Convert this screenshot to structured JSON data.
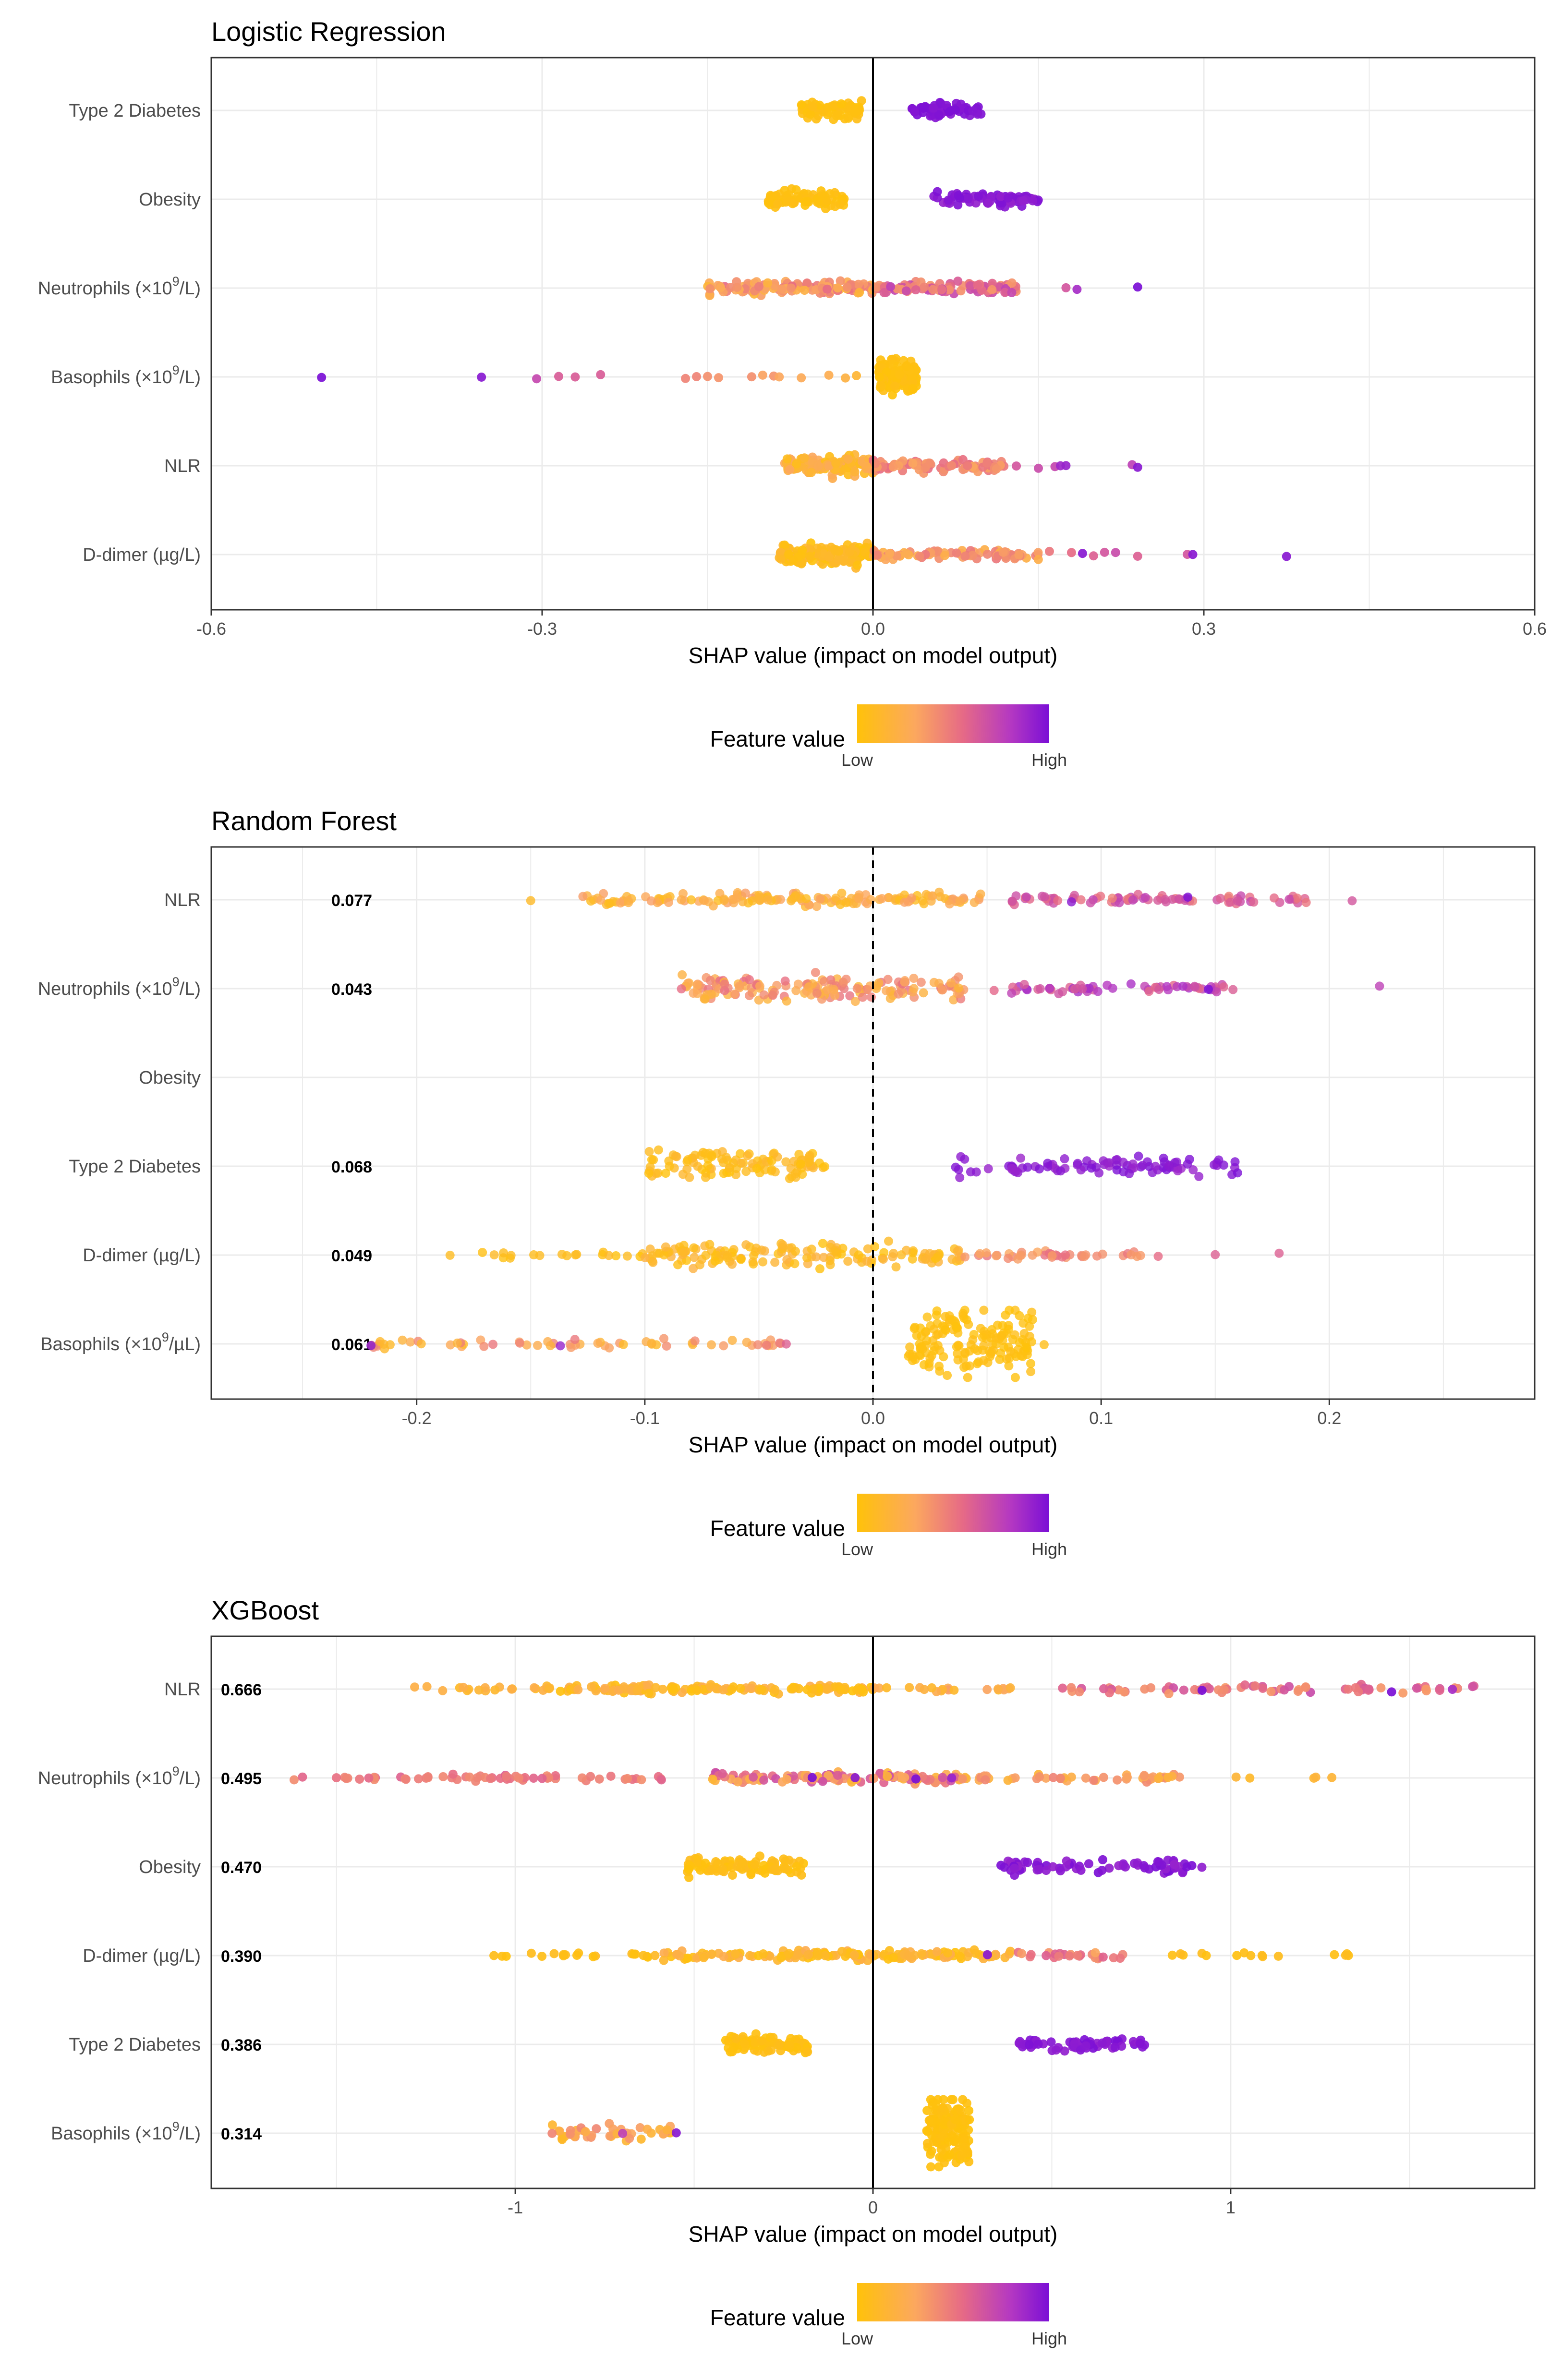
{
  "x_axis_label": "SHAP value (impact on model output)",
  "legend": {
    "title": "Feature value",
    "low": "Low",
    "high": "High"
  },
  "colors": {
    "low": "#ffc20a",
    "mid": "#f4837a",
    "high": "#7b0fd6",
    "grid": "#ebebeb",
    "zero_line": "#000000",
    "panel_border": "#333333"
  },
  "chart_data": [
    {
      "type": "scatter",
      "title": "Logistic Regression",
      "xlabel": "SHAP value (impact on model output)",
      "xlim": [
        -0.6,
        0.6
      ],
      "xticks": [
        -0.6,
        -0.3,
        0.0,
        0.3,
        0.6
      ],
      "tick_labels": [
        "-0.6",
        "-0.3",
        "0.0",
        "0.3",
        "0.6"
      ],
      "zero_line": "solid",
      "features": [
        {
          "name": "Type 2 Diabetes",
          "importance": "",
          "clusters": [
            {
              "lo": -0.065,
              "hi": -0.01,
              "n": 70,
              "jitter": 0.2,
              "c0": 0.0,
              "c1": 0.05
            },
            {
              "lo": 0.035,
              "hi": 0.1,
              "n": 60,
              "jitter": 0.16,
              "c0": 0.95,
              "c1": 1.0
            }
          ]
        },
        {
          "name": "Obesity",
          "importance": "",
          "clusters": [
            {
              "lo": -0.095,
              "hi": -0.025,
              "n": 85,
              "jitter": 0.22,
              "c0": 0.0,
              "c1": 0.05
            },
            {
              "lo": 0.055,
              "hi": 0.15,
              "n": 70,
              "jitter": 0.16,
              "c0": 0.9,
              "c1": 1.0
            }
          ]
        },
        {
          "name": "Neutrophils (×10^9/L)",
          "importance": "",
          "clusters": [
            {
              "lo": -0.15,
              "hi": 0.0,
              "n": 130,
              "jitter": 0.16,
              "c0": 0.15,
              "c1": 0.55
            },
            {
              "lo": 0.0,
              "hi": 0.13,
              "n": 100,
              "jitter": 0.14,
              "c0": 0.35,
              "c1": 0.75
            }
          ],
          "points": [
            {
              "x": 0.175,
              "c": 0.65
            },
            {
              "x": 0.185,
              "c": 0.85
            },
            {
              "x": 0.24,
              "c": 1.0
            }
          ]
        },
        {
          "name": "Basophils (×10^9/L)",
          "importance": "",
          "clusters": [
            {
              "lo": 0.005,
              "hi": 0.04,
              "n": 120,
              "jitter": 0.45,
              "c0": 0.0,
              "c1": 0.05
            }
          ],
          "points": [
            {
              "x": -0.5,
              "c": 1.0
            },
            {
              "x": -0.355,
              "c": 0.95
            },
            {
              "x": -0.305,
              "c": 0.72
            },
            {
              "x": -0.285,
              "c": 0.62
            },
            {
              "x": -0.27,
              "c": 0.62
            },
            {
              "x": -0.247,
              "c": 0.62
            },
            {
              "x": -0.17,
              "c": 0.45
            },
            {
              "x": -0.16,
              "c": 0.45
            },
            {
              "x": -0.15,
              "c": 0.4
            },
            {
              "x": -0.14,
              "c": 0.38
            },
            {
              "x": -0.11,
              "c": 0.4
            },
            {
              "x": -0.1,
              "c": 0.32
            },
            {
              "x": -0.09,
              "c": 0.38
            },
            {
              "x": -0.085,
              "c": 0.3
            },
            {
              "x": -0.065,
              "c": 0.28
            },
            {
              "x": -0.04,
              "c": 0.25
            },
            {
              "x": -0.025,
              "c": 0.2
            },
            {
              "x": -0.015,
              "c": 0.15
            }
          ]
        },
        {
          "name": "NLR",
          "importance": "",
          "clusters": [
            {
              "lo": -0.08,
              "hi": 0.0,
              "n": 140,
              "jitter": 0.24,
              "c0": 0.05,
              "c1": 0.3
            },
            {
              "lo": 0.0,
              "hi": 0.12,
              "n": 90,
              "jitter": 0.14,
              "c0": 0.3,
              "c1": 0.55
            }
          ],
          "points": [
            {
              "x": 0.13,
              "c": 0.65
            },
            {
              "x": 0.15,
              "c": 0.7
            },
            {
              "x": 0.165,
              "c": 0.72
            },
            {
              "x": 0.17,
              "c": 0.88
            },
            {
              "x": 0.175,
              "c": 0.9
            },
            {
              "x": 0.235,
              "c": 0.75
            },
            {
              "x": 0.24,
              "c": 0.95
            }
          ]
        },
        {
          "name": "D-dimer (µg/L)",
          "importance": "",
          "clusters": [
            {
              "lo": -0.085,
              "hi": 0.0,
              "n": 150,
              "jitter": 0.26,
              "c0": 0.0,
              "c1": 0.15
            },
            {
              "lo": 0.0,
              "hi": 0.15,
              "n": 80,
              "jitter": 0.12,
              "c0": 0.2,
              "c1": 0.5
            }
          ],
          "points": [
            {
              "x": 0.16,
              "c": 0.5
            },
            {
              "x": 0.18,
              "c": 0.55
            },
            {
              "x": 0.19,
              "c": 0.95
            },
            {
              "x": 0.2,
              "c": 0.6
            },
            {
              "x": 0.21,
              "c": 0.65
            },
            {
              "x": 0.22,
              "c": 0.7
            },
            {
              "x": 0.24,
              "c": 0.6
            },
            {
              "x": 0.285,
              "c": 0.65
            },
            {
              "x": 0.29,
              "c": 0.95
            },
            {
              "x": 0.375,
              "c": 0.95
            }
          ]
        }
      ]
    },
    {
      "type": "scatter",
      "title": "Random Forest",
      "xlabel": "SHAP value (impact on model output)",
      "xlim": [
        -0.29,
        0.29
      ],
      "xticks": [
        -0.2,
        -0.1,
        0.0,
        0.1,
        0.2
      ],
      "tick_labels": [
        "-0.2",
        "-0.1",
        "0.0",
        "0.1",
        "0.2"
      ],
      "zero_line": "dashed",
      "features": [
        {
          "name": "NLR",
          "importance": "0.077",
          "clusters": [
            {
              "lo": -0.13,
              "hi": 0.05,
              "n": 150,
              "jitter": 0.16,
              "c0": 0.05,
              "c1": 0.35
            },
            {
              "lo": 0.06,
              "hi": 0.19,
              "n": 80,
              "jitter": 0.12,
              "c0": 0.45,
              "c1": 0.75
            }
          ],
          "points": [
            {
              "x": -0.15,
              "c": 0.1
            },
            {
              "x": 0.21,
              "c": 0.65
            },
            {
              "x": 0.138,
              "c": 1.0
            },
            {
              "x": 0.087,
              "c": 0.95
            }
          ]
        },
        {
          "name": "Neutrophils (×10^9/L)",
          "importance": "0.043",
          "clusters": [
            {
              "lo": -0.085,
              "hi": 0.04,
              "n": 160,
              "jitter": 0.3,
              "c0": 0.15,
              "c1": 0.55
            },
            {
              "lo": 0.05,
              "hi": 0.16,
              "n": 60,
              "jitter": 0.12,
              "c0": 0.55,
              "c1": 0.85
            }
          ],
          "points": [
            {
              "x": 0.222,
              "c": 0.75
            },
            {
              "x": 0.147,
              "c": 1.0
            }
          ]
        },
        {
          "name": "Obesity",
          "importance": "",
          "clusters": []
        },
        {
          "name": "Type 2 Diabetes",
          "importance": "0.068",
          "clusters": [
            {
              "lo": -0.1,
              "hi": -0.02,
              "n": 110,
              "jitter": 0.36,
              "c0": 0.0,
              "c1": 0.15
            },
            {
              "lo": 0.035,
              "hi": 0.16,
              "n": 90,
              "jitter": 0.24,
              "c0": 0.88,
              "c1": 1.0
            }
          ]
        },
        {
          "name": "D-dimer (µg/L)",
          "importance": "0.049",
          "clusters": [
            {
              "lo": -0.19,
              "hi": -0.1,
              "n": 20,
              "jitter": 0.08,
              "c0": 0.0,
              "c1": 0.1
            },
            {
              "lo": -0.1,
              "hi": 0.04,
              "n": 150,
              "jitter": 0.3,
              "c0": 0.0,
              "c1": 0.2
            },
            {
              "lo": 0.04,
              "hi": 0.12,
              "n": 40,
              "jitter": 0.12,
              "c0": 0.3,
              "c1": 0.55
            }
          ],
          "points": [
            {
              "x": 0.15,
              "c": 0.6
            },
            {
              "x": 0.178,
              "c": 0.6
            },
            {
              "x": 0.125,
              "c": 0.55
            }
          ]
        },
        {
          "name": "Basophils (×10^9/µL)",
          "importance": "0.061",
          "clusters": [
            {
              "lo": -0.22,
              "hi": -0.04,
              "n": 60,
              "jitter": 0.12,
              "c0": 0.1,
              "c1": 0.5
            },
            {
              "lo": 0.015,
              "hi": 0.07,
              "n": 160,
              "jitter": 0.9,
              "c0": 0.0,
              "c1": 0.05
            }
          ],
          "points": [
            {
              "x": -0.22,
              "c": 0.95
            },
            {
              "x": -0.137,
              "c": 0.9
            },
            {
              "x": -0.038,
              "c": 0.6
            },
            {
              "x": 0.075,
              "c": 0.05
            }
          ]
        }
      ]
    },
    {
      "type": "scatter",
      "title": "XGBoost",
      "xlabel": "SHAP value (impact on model output)",
      "xlim": [
        -1.85,
        1.85
      ],
      "xticks": [
        -1,
        0,
        1
      ],
      "tick_labels": [
        "-1",
        "0",
        "1"
      ],
      "zero_line": "solid",
      "features": [
        {
          "name": "NLR",
          "importance": "0.666",
          "clusters": [
            {
              "lo": -1.32,
              "hi": -1.0,
              "n": 14,
              "jitter": 0.06,
              "c0": 0.05,
              "c1": 0.25
            },
            {
              "lo": -0.95,
              "hi": 0.0,
              "n": 150,
              "jitter": 0.1,
              "c0": 0.0,
              "c1": 0.25
            },
            {
              "lo": 0.0,
              "hi": 0.4,
              "n": 20,
              "jitter": 0.08,
              "c0": 0.1,
              "c1": 0.35
            },
            {
              "lo": 0.52,
              "hi": 1.7,
              "n": 70,
              "jitter": 0.1,
              "c0": 0.35,
              "c1": 0.7
            }
          ],
          "points": [
            {
              "x": 0.92,
              "c": 1.0
            },
            {
              "x": 1.45,
              "c": 1.0
            },
            {
              "x": 1.62,
              "c": 0.85
            }
          ]
        },
        {
          "name": "Neutrophils (×10^9/L)",
          "importance": "0.495",
          "clusters": [
            {
              "lo": -1.62,
              "hi": -0.55,
              "n": 60,
              "jitter": 0.08,
              "c0": 0.4,
              "c1": 0.6
            },
            {
              "lo": -0.45,
              "hi": 0.25,
              "n": 120,
              "jitter": 0.12,
              "c0": 0.15,
              "c1": 0.7
            },
            {
              "lo": 0.25,
              "hi": 0.88,
              "n": 50,
              "jitter": 0.08,
              "c0": 0.15,
              "c1": 0.45
            },
            {
              "lo": 1.0,
              "hi": 1.3,
              "n": 5,
              "jitter": 0.05,
              "c0": 0.1,
              "c1": 0.2
            }
          ],
          "points": [
            {
              "x": -0.17,
              "c": 1.0
            },
            {
              "x": -0.05,
              "c": 0.95
            },
            {
              "x": 0.12,
              "c": 1.0
            },
            {
              "x": 0.22,
              "c": 0.9
            }
          ]
        },
        {
          "name": "Obesity",
          "importance": "0.470",
          "clusters": [
            {
              "lo": -0.52,
              "hi": -0.18,
              "n": 90,
              "jitter": 0.22,
              "c0": 0.0,
              "c1": 0.08
            },
            {
              "lo": 0.34,
              "hi": 0.92,
              "n": 70,
              "jitter": 0.16,
              "c0": 0.9,
              "c1": 1.0
            }
          ]
        },
        {
          "name": "D-dimer (µg/L)",
          "importance": "0.390",
          "clusters": [
            {
              "lo": -1.08,
              "hi": -0.6,
              "n": 20,
              "jitter": 0.06,
              "c0": 0.0,
              "c1": 0.1
            },
            {
              "lo": -0.6,
              "hi": 0.4,
              "n": 150,
              "jitter": 0.12,
              "c0": 0.0,
              "c1": 0.25
            },
            {
              "lo": 0.4,
              "hi": 0.7,
              "n": 25,
              "jitter": 0.1,
              "c0": 0.3,
              "c1": 0.6
            },
            {
              "lo": 0.8,
              "hi": 1.35,
              "n": 15,
              "jitter": 0.06,
              "c0": 0.0,
              "c1": 0.1
            }
          ],
          "points": [
            {
              "x": 0.32,
              "c": 0.95
            }
          ]
        },
        {
          "name": "Type 2 Diabetes",
          "importance": "0.386",
          "clusters": [
            {
              "lo": -0.42,
              "hi": -0.18,
              "n": 80,
              "jitter": 0.22,
              "c0": 0.0,
              "c1": 0.06
            },
            {
              "lo": 0.4,
              "hi": 0.76,
              "n": 60,
              "jitter": 0.16,
              "c0": 0.92,
              "c1": 1.0
            }
          ]
        },
        {
          "name": "Basophils (×10^9/L)",
          "importance": "0.314",
          "clusters": [
            {
              "lo": -0.9,
              "hi": -0.56,
              "n": 45,
              "jitter": 0.18,
              "c0": 0.1,
              "c1": 0.45
            },
            {
              "lo": 0.15,
              "hi": 0.27,
              "n": 160,
              "jitter": 0.9,
              "c0": 0.0,
              "c1": 0.04
            }
          ],
          "points": [
            {
              "x": -0.55,
              "c": 0.95
            },
            {
              "x": -0.7,
              "c": 0.75
            }
          ]
        }
      ]
    }
  ]
}
